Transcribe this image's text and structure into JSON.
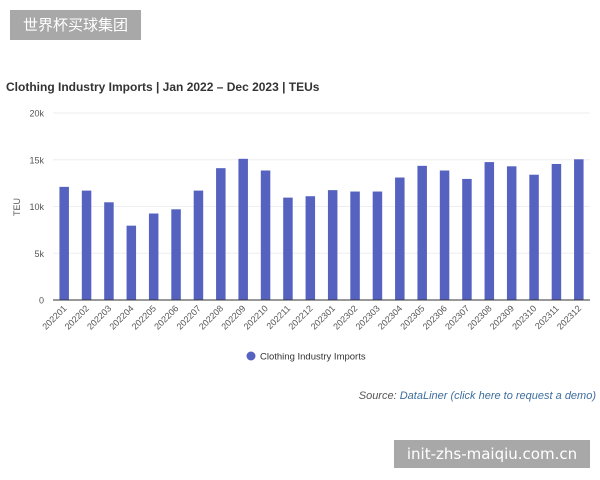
{
  "watermarks": {
    "top": "世界杯买球集团",
    "bottom": "init-zhs-maiqiu.com.cn"
  },
  "source": {
    "prefix": "Source:",
    "link": "DataLiner",
    "note": "(click here to request a demo)"
  },
  "colors": {
    "bar": "#5662c0",
    "grid": "#eeeeee",
    "axis": "#333333"
  },
  "chart_data": {
    "type": "bar",
    "title": "Clothing Industry Imports | Jan 2022 – Dec 2023 | TEUs",
    "ylabel": "TEU",
    "xlabel": "",
    "ylim": [
      0,
      20000
    ],
    "yticks": [
      0,
      5000,
      10000,
      15000,
      20000
    ],
    "ytick_labels": [
      "0",
      "5k",
      "10k",
      "15k",
      "20k"
    ],
    "grid": true,
    "legend_position": "bottom",
    "categories": [
      "202201",
      "202202",
      "202203",
      "202204",
      "202205",
      "202206",
      "202207",
      "202208",
      "202209",
      "202210",
      "202211",
      "202212",
      "202301",
      "202302",
      "202303",
      "202304",
      "202305",
      "202306",
      "202307",
      "202308",
      "202309",
      "202310",
      "202311",
      "202312"
    ],
    "series": [
      {
        "name": "Clothing Industry Imports",
        "values": [
          12100,
          11700,
          10450,
          7950,
          9250,
          9700,
          11700,
          14100,
          15100,
          13850,
          10950,
          11100,
          11750,
          11600,
          11600,
          13100,
          14350,
          13850,
          12950,
          14750,
          14300,
          13400,
          14550,
          15050
        ]
      }
    ]
  }
}
